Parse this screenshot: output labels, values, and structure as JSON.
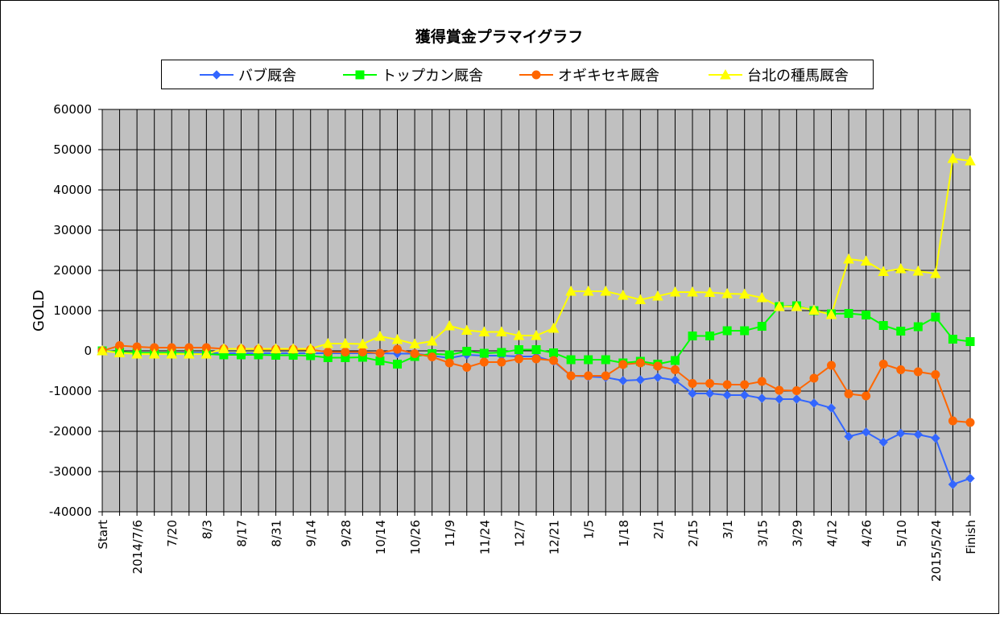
{
  "chart_data": {
    "type": "line",
    "title": "獲得賞金プラマイグラフ",
    "y_label": "GOLD",
    "categories": [
      "Start",
      null,
      "2014/7/6",
      null,
      "7/20",
      null,
      "8/3",
      null,
      "8/17",
      null,
      "8/31",
      null,
      "9/14",
      null,
      "9/28",
      null,
      "10/14",
      null,
      "10/26",
      null,
      "11/9",
      null,
      "11/24",
      null,
      "12/7",
      null,
      "12/21",
      null,
      "1/5",
      null,
      "1/18",
      null,
      "2/1",
      null,
      "2/15",
      null,
      "3/1",
      null,
      "3/15",
      null,
      "3/29",
      null,
      "4/12",
      null,
      "4/26",
      null,
      "5/10",
      null,
      "2015/5/24",
      null,
      "Finish"
    ],
    "series": [
      {
        "name": "バブ厩舎",
        "color": "#3366ff",
        "marker": "diamond",
        "values": [
          0,
          -300,
          -500,
          -500,
          -500,
          -500,
          -500,
          -600,
          -600,
          -600,
          -600,
          -600,
          -600,
          -600,
          -600,
          -600,
          -600,
          -700,
          -700,
          -1200,
          -1800,
          -1000,
          -1200,
          -1200,
          -1400,
          -1400,
          -2600,
          -6200,
          -6400,
          -6600,
          -7400,
          -7200,
          -6600,
          -7300,
          -10600,
          -10600,
          -11000,
          -11000,
          -11800,
          -12000,
          -12000,
          -13000,
          -14200,
          -21300,
          -20200,
          -22700,
          -20500,
          -20800,
          -21700,
          -33200,
          -31700
        ]
      },
      {
        "name": "トップカン厩舎",
        "color": "#00ff00",
        "marker": "square",
        "values": [
          0,
          -300,
          -500,
          -500,
          -500,
          -700,
          -800,
          -1000,
          -1000,
          -1000,
          -1100,
          -1100,
          -1200,
          -1700,
          -1700,
          -1600,
          -2500,
          -3300,
          -1400,
          -700,
          -1000,
          -100,
          -600,
          -400,
          300,
          300,
          -500,
          -2200,
          -2200,
          -2200,
          -3000,
          -2600,
          -3300,
          -2400,
          3700,
          3700,
          5000,
          5000,
          6100,
          11000,
          11200,
          10000,
          9200,
          9300,
          8900,
          6300,
          4900,
          6000,
          8400,
          2900,
          2300
        ]
      },
      {
        "name": "オギキセキ厩舎",
        "color": "#ff6600",
        "marker": "circle",
        "values": [
          0,
          1300,
          1000,
          800,
          800,
          800,
          800,
          500,
          500,
          400,
          400,
          400,
          300,
          -300,
          -300,
          -300,
          -600,
          400,
          -700,
          -1500,
          -3000,
          -4100,
          -2800,
          -2800,
          -2000,
          -2000,
          -2400,
          -6200,
          -6200,
          -6200,
          -3400,
          -3000,
          -3800,
          -4700,
          -8100,
          -8100,
          -8400,
          -8400,
          -7600,
          -9800,
          -9900,
          -6800,
          -3600,
          -10700,
          -11200,
          -3300,
          -4700,
          -5200,
          -5900,
          -17400,
          -17800
        ]
      },
      {
        "name": "台北の種馬厩舎",
        "color": "#ffff00",
        "marker": "triangle",
        "values": [
          0,
          -500,
          -800,
          -800,
          -800,
          -800,
          -800,
          500,
          500,
          500,
          500,
          500,
          500,
          1800,
          1800,
          1700,
          3600,
          2800,
          1700,
          2400,
          6200,
          5100,
          4700,
          4700,
          3800,
          3800,
          5600,
          14800,
          14800,
          14800,
          13800,
          12700,
          13600,
          14600,
          14600,
          14500,
          14200,
          14100,
          13200,
          11000,
          11000,
          10100,
          9000,
          22800,
          22300,
          19700,
          20400,
          19800,
          19200,
          47800,
          47200
        ]
      }
    ],
    "ylim": [
      -40000,
      60000
    ],
    "yticks": [
      -40000,
      -30000,
      -20000,
      -10000,
      0,
      10000,
      20000,
      30000,
      40000,
      50000,
      60000
    ],
    "grid": true,
    "x_grid": true,
    "legend": "top"
  }
}
